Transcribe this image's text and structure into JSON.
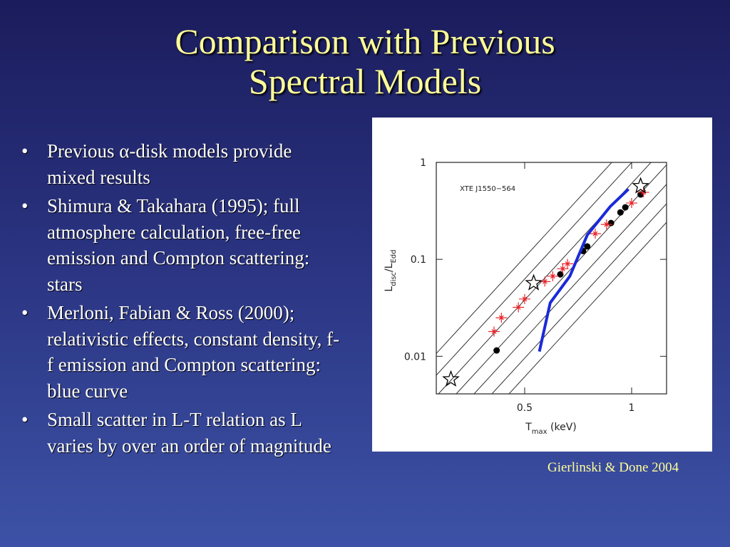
{
  "slide": {
    "title": [
      "Comparison with Previous",
      "Spectral Models"
    ],
    "bullets": [
      "Previous α-disk models provide mixed results",
      "Shimura & Takahara (1995); full atmosphere calculation, free-free emission and Compton scattering: stars",
      "Merloni, Fabian & Ross (2000); relativistic effects, constant density, f-f emission and Compton scattering: blue curve",
      "Small scatter in L-T relation as L varies by over an order of magnitude"
    ],
    "caption": "Gierlinski & Done 2004"
  },
  "chart_data": {
    "type": "scatter",
    "annotation": "XTE J1550−564",
    "xlabel": [
      "T",
      "max",
      " (keV)"
    ],
    "ylabel": [
      "L",
      "disc",
      "/L",
      "Edd"
    ],
    "xscale": "log",
    "yscale": "log",
    "xlim": [
      0.282,
      1.254
    ],
    "ylim": [
      0.0041,
      1
    ],
    "xticks": [
      0.5,
      1
    ],
    "yticks": [
      0.01,
      0.1,
      1
    ],
    "series": [
      {
        "marker": "circle",
        "color": "#000000",
        "x": [
          0.417,
          0.63,
          0.73,
          0.75,
          0.875,
          0.93,
          0.96,
          1.06
        ],
        "values": [
          0.0115,
          0.07,
          0.122,
          0.136,
          0.237,
          0.305,
          0.344,
          0.467
        ]
      },
      {
        "marker": "cross",
        "color": "#e8252a",
        "x": [
          0.41,
          0.43,
          0.48,
          0.5,
          0.57,
          0.6,
          0.64,
          0.66,
          0.79,
          0.85,
          1.0,
          1.08
        ],
        "values": [
          0.018,
          0.025,
          0.032,
          0.039,
          0.059,
          0.067,
          0.08,
          0.09,
          0.184,
          0.229,
          0.381,
          0.491
        ]
      },
      {
        "marker": "star",
        "color": "#000000",
        "x": [
          0.31,
          0.53,
          1.06
        ],
        "values": [
          0.0058,
          0.057,
          0.57
        ]
      },
      {
        "marker": "line",
        "color": "#1a2ad8",
        "x": [
          0.55,
          0.59,
          0.67,
          0.75,
          0.87,
          0.98
        ],
        "values": [
          0.0112,
          0.0356,
          0.067,
          0.178,
          0.35,
          0.53
        ]
      }
    ]
  }
}
